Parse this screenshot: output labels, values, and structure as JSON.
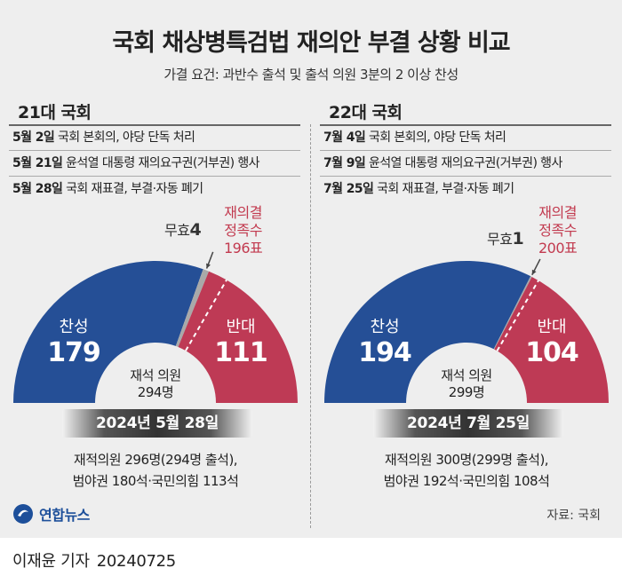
{
  "title": "국회 채상병특검법 재의안 부결 상황 비교",
  "subtitle": "가결 요건: 과반수 출석 및 출석 의원 3분의 2 이상 찬성",
  "colors": {
    "yes": "#254f96",
    "no": "#be3a55",
    "invalid": "#a9a9a9",
    "quorum_text": "#c23a4f"
  },
  "sessions": [
    {
      "title": "21대 국회",
      "events": [
        {
          "date": "5월 2일",
          "text": "국회 본회의, 야당 단독 처리"
        },
        {
          "date": "5월 21일",
          "text": "윤석열 대통령 재의요구권(거부권) 행사"
        },
        {
          "date": "5월 28일",
          "text": "국회 재표결, 부결·자동 폐기"
        }
      ],
      "date_bar": "2024년 5월 28일",
      "note_line1": "재적의원 296명(294명 출석),",
      "note_line2": "범야권 180석·국민의힘 113석"
    },
    {
      "title": "22대 국회",
      "events": [
        {
          "date": "7월 4일",
          "text": "국회 본회의, 야당 단독 처리"
        },
        {
          "date": "7월 9일",
          "text": "윤석열 대통령 재의요구권(거부권) 행사"
        },
        {
          "date": "7월 25일",
          "text": "국회 재표결, 부결·자동 폐기"
        }
      ],
      "date_bar": "2024년 7월 25일",
      "note_line1": "재적의원 300명(299명 출석),",
      "note_line2": "범야권 192석·국민의힘 108석"
    }
  ],
  "chart_data": [
    {
      "type": "pie",
      "shape": "half-donut",
      "center_label_line1": "재석 의원",
      "center_label_line2": "294명",
      "total": 294,
      "slices": [
        {
          "name": "찬성",
          "value": 179
        },
        {
          "name": "무효",
          "value": 4
        },
        {
          "name": "반대",
          "value": 111
        }
      ],
      "invalid_label": "무효",
      "quorum_line1": "재의결",
      "quorum_line2": "정족수",
      "quorum_line3": "196표",
      "quorum_value": 196
    },
    {
      "type": "pie",
      "shape": "half-donut",
      "center_label_line1": "재석 의원",
      "center_label_line2": "299명",
      "total": 299,
      "slices": [
        {
          "name": "찬성",
          "value": 194
        },
        {
          "name": "무효",
          "value": 1
        },
        {
          "name": "반대",
          "value": 104
        }
      ],
      "invalid_label": "무효",
      "quorum_line1": "재의결",
      "quorum_line2": "정족수",
      "quorum_line3": "200표",
      "quorum_value": 200
    }
  ],
  "logo_text": "연합뉴스",
  "source": "자료: 국회",
  "byline_author": "이재윤 기자",
  "byline_date": "20240725"
}
